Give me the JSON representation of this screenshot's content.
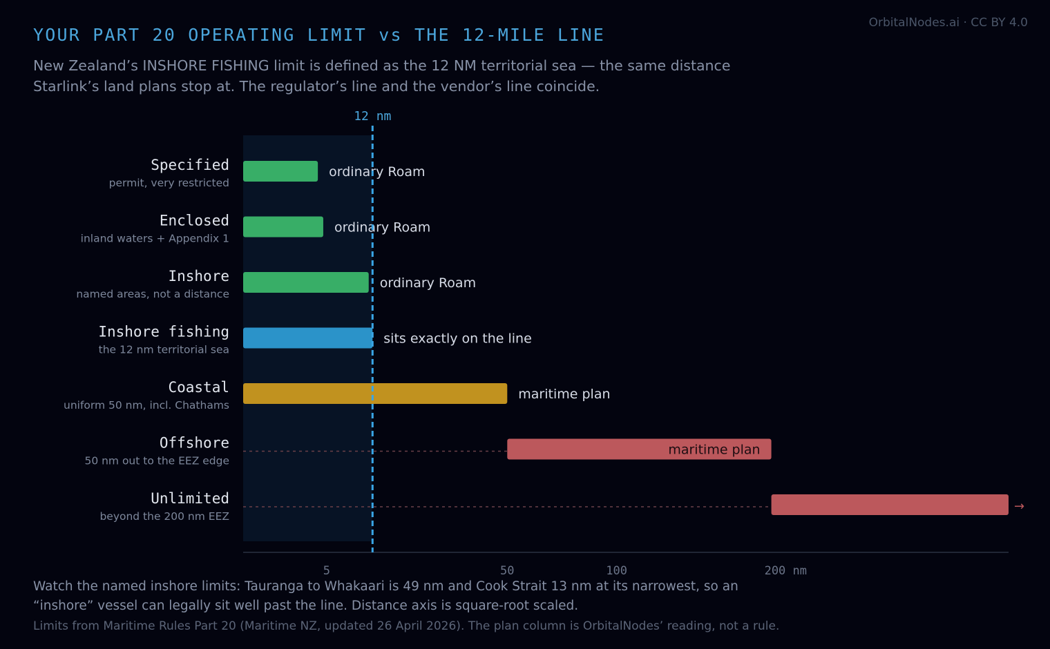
{
  "header": {
    "title": "YOUR PART 20 OPERATING LIMIT vs THE 12-MILE LINE",
    "subtitle": "New Zealand’s INSHORE FISHING limit is defined as the 12 NM territorial sea — the same distance Starlink’s land plans stop at. The regulator’s line and the vendor’s line coincide.",
    "credit": "OrbitalNodes.ai · CC BY 4.0"
  },
  "footer": {
    "note": "Watch the named inshore limits: Tauranga to Whakaari is 49 nm and Cook Strait 13 nm at its narrowest, so an “inshore” vessel can legally sit well past the line. Distance axis is square-root scaled.",
    "source": "Limits from Maritime Rules Part 20 (Maritime NZ, updated 26 April 2026). The plan column is OrbitalNodes’ reading, not a rule."
  },
  "colors": {
    "green": "#38ae67",
    "blue": "#2b93c9",
    "gold": "#c1921f",
    "red": "#bc585c",
    "reference": "#3aa6e6",
    "shade": "#071325"
  },
  "chart_data": {
    "type": "bar",
    "orientation": "horizontal",
    "x_scale": "sqrt",
    "x_unit": "nm",
    "xlim": [
      0,
      420
    ],
    "xticks": [
      {
        "value": 5,
        "label": "5"
      },
      {
        "value": 50,
        "label": "50"
      },
      {
        "value": 100,
        "label": "100"
      },
      {
        "value": 200,
        "label": "200 nm"
      }
    ],
    "reference_line": {
      "value": 12,
      "label": "12 nm"
    },
    "series": [
      {
        "label": "Specified",
        "sublabel": "permit, very restricted",
        "start": 0,
        "end": 4,
        "color": "green",
        "annotation": "ordinary Roam",
        "annotation_position": "outside"
      },
      {
        "label": "Enclosed",
        "sublabel": "inland waters + Appendix 1",
        "start": 0,
        "end": 4.6,
        "color": "green",
        "annotation": "ordinary Roam",
        "annotation_position": "outside"
      },
      {
        "label": "Inshore",
        "sublabel": "named areas, not a distance",
        "start": 0,
        "end": 11.3,
        "color": "green",
        "annotation": "ordinary Roam",
        "annotation_position": "outside"
      },
      {
        "label": "Inshore fishing",
        "sublabel": "the 12 nm territorial sea",
        "start": 0,
        "end": 12,
        "color": "blue",
        "annotation": "sits exactly on the line",
        "annotation_position": "outside"
      },
      {
        "label": "Coastal",
        "sublabel": "uniform 50 nm, incl. Chathams",
        "start": 0,
        "end": 50,
        "color": "gold",
        "annotation": "maritime plan",
        "annotation_position": "outside"
      },
      {
        "label": "Offshore",
        "sublabel": "50 nm out to the EEZ edge",
        "start": 50,
        "end": 200,
        "color": "red",
        "annotation": "maritime plan",
        "annotation_position": "inside",
        "lead_line": true
      },
      {
        "label": "Unlimited",
        "sublabel": "beyond the 200 nm EEZ",
        "start": 200,
        "end": 420,
        "color": "red",
        "annotation": "",
        "annotation_position": "none",
        "lead_line": true,
        "continues": true
      }
    ]
  }
}
